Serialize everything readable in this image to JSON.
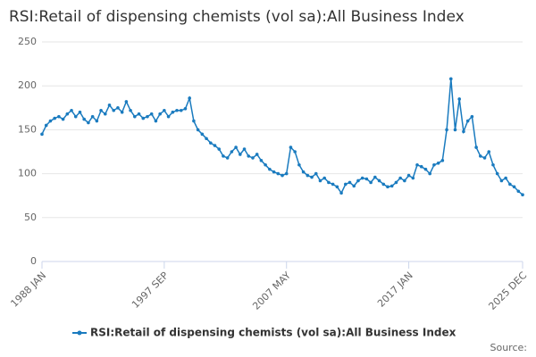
{
  "chart_data": {
    "type": "line",
    "title": "RSI:Retail of dispensing chemists (vol sa):All Business Index",
    "source": "Source:",
    "categories": [
      "1988 JAN",
      null,
      null,
      null,
      null,
      null,
      null,
      null,
      null,
      null,
      null,
      null,
      null,
      null,
      null,
      null,
      null,
      null,
      null,
      null,
      null,
      null,
      null,
      null,
      null,
      null,
      null,
      null,
      null,
      "1997 SEP",
      null,
      null,
      null,
      null,
      null,
      null,
      null,
      null,
      null,
      null,
      null,
      null,
      null,
      null,
      null,
      null,
      null,
      null,
      null,
      null,
      null,
      null,
      null,
      null,
      null,
      null,
      null,
      null,
      "2007 MAY",
      null,
      null,
      null,
      null,
      null,
      null,
      null,
      null,
      null,
      null,
      null,
      null,
      null,
      null,
      null,
      null,
      null,
      null,
      null,
      null,
      null,
      null,
      null,
      null,
      null,
      null,
      null,
      null,
      "2017 JAN",
      null,
      null,
      null,
      null,
      null,
      null,
      null,
      null,
      null,
      null,
      null,
      null,
      null,
      null,
      null,
      null,
      null,
      null,
      null,
      null,
      null,
      null,
      null,
      null,
      null,
      null,
      "2025 DEC"
    ],
    "series": [
      {
        "name": "RSI:Retail of dispensing chemists (vol sa):All Business Index",
        "color": "#1a7bbf",
        "values": [
          145,
          155,
          160,
          163,
          165,
          162,
          168,
          172,
          165,
          170,
          162,
          158,
          165,
          160,
          172,
          168,
          178,
          172,
          175,
          170,
          182,
          172,
          165,
          168,
          163,
          165,
          168,
          160,
          168,
          172,
          165,
          170,
          172,
          172,
          174,
          186,
          160,
          150,
          145,
          140,
          135,
          132,
          128,
          120,
          118,
          125,
          130,
          122,
          128,
          120,
          118,
          122,
          115,
          110,
          105,
          102,
          100,
          98,
          100,
          130,
          125,
          110,
          102,
          98,
          96,
          100,
          92,
          95,
          90,
          88,
          85,
          78,
          88,
          90,
          86,
          92,
          95,
          94,
          90,
          96,
          92,
          88,
          85,
          86,
          90,
          95,
          92,
          98,
          95,
          110,
          108,
          105,
          100,
          110,
          112,
          115,
          150,
          208,
          150,
          185,
          148,
          160,
          165,
          130,
          120,
          118,
          125,
          110,
          100,
          92,
          95,
          88,
          85,
          80,
          76
        ]
      }
    ],
    "ylim": [
      0,
      250
    ],
    "yticks": [
      0,
      50,
      100,
      150,
      200,
      250
    ],
    "grid": true,
    "legend": "bottom"
  }
}
